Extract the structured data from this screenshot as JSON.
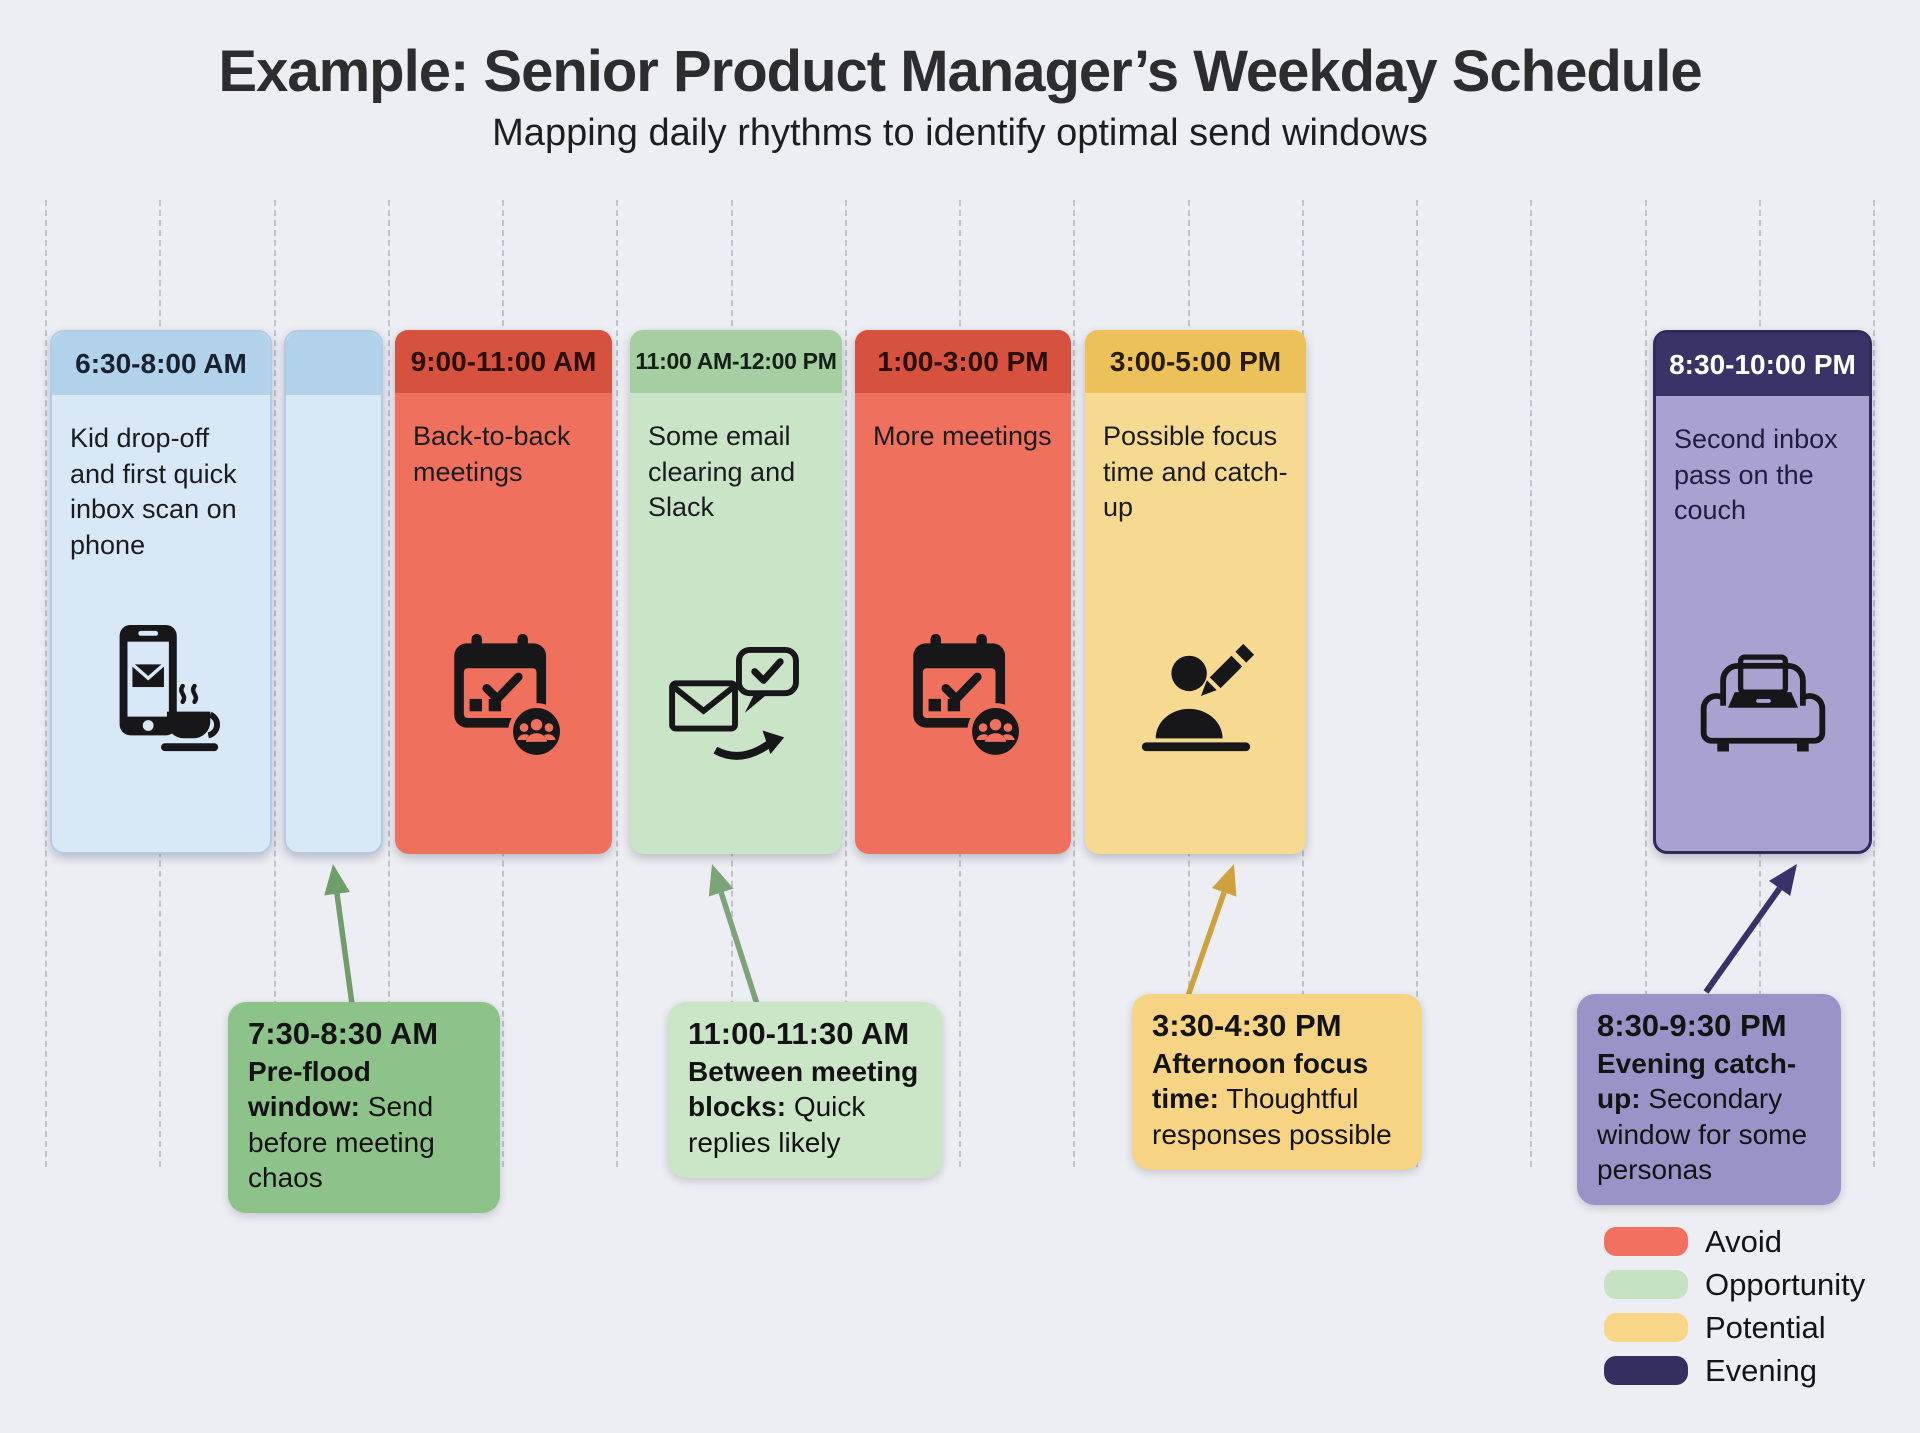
{
  "header": {
    "title": "Example: Senior Product Manager’s Weekday Schedule",
    "subtitle": "Mapping daily rhythms to identify optimal send windows"
  },
  "timeline": {
    "blocks": [
      {
        "time": "6:30-8:00 AM",
        "description": "Kid drop-off and first quick inbox scan on phone",
        "icon": "phone-coffee-icon",
        "category": "morning"
      },
      {
        "time": "",
        "description": "",
        "icon": "",
        "category": "morning"
      },
      {
        "time": "9:00-11:00 AM",
        "description": "Back-to-back meetings",
        "icon": "calendar-people-icon",
        "category": "avoid"
      },
      {
        "time": "11:00 AM-12:00 PM",
        "description": "Some email clearing and Slack",
        "icon": "email-reply-icon",
        "category": "opportunity"
      },
      {
        "time": "1:00-3:00 PM",
        "description": "More meetings",
        "icon": "calendar-people-icon",
        "category": "avoid"
      },
      {
        "time": "3:00-5:00 PM",
        "description": "Possible focus time and catch-up",
        "icon": "person-writing-icon",
        "category": "potential"
      },
      {
        "time": "8:30-10:00 PM",
        "description": "Second inbox pass on the couch",
        "icon": "couch-laptop-icon",
        "category": "evening"
      }
    ]
  },
  "callouts": [
    {
      "time": "7:30-8:30 AM",
      "label": "Pre-flood window:",
      "text": "Send before meeting chaos",
      "color": "#8ec28b",
      "arrow_color": "#6f9e6a"
    },
    {
      "time": "11:00-11:30 AM",
      "label": "Between meeting blocks:",
      "text": "Quick replies likely",
      "color": "#cbe5c7",
      "arrow_color": "#7da379"
    },
    {
      "time": "3:30-4:30 PM",
      "label": "Afternoon focus time:",
      "text": "Thoughtful responses possible",
      "color": "#f6d483",
      "arrow_color": "#cda23e"
    },
    {
      "time": "8:30-9:30 PM",
      "label": "Evening catch-up:",
      "text": "Secondary window for some personas",
      "color": "#9a93c8",
      "arrow_color": "#37326a"
    }
  ],
  "legend": {
    "items": [
      {
        "label": "Avoid",
        "color": "#f2705f"
      },
      {
        "label": "Opportunity",
        "color": "#c5e3c2"
      },
      {
        "label": "Potential",
        "color": "#f8d687"
      },
      {
        "label": "Evening",
        "color": "#333060"
      }
    ]
  },
  "colors": {
    "background": "#edeef3",
    "morning-header": "#b2d2ec",
    "morning-body": "#d9e8f6",
    "avoid-header": "#d6523f",
    "avoid-body": "#f0705e",
    "opportunity-header": "#a5cfa2",
    "opportunity-body": "#c9e4c6",
    "potential-header": "#ecc159",
    "potential-body": "#f6da92",
    "evening-header": "#393367",
    "evening-body": "#a9a2d0",
    "evening-border": "#2f2b59"
  }
}
